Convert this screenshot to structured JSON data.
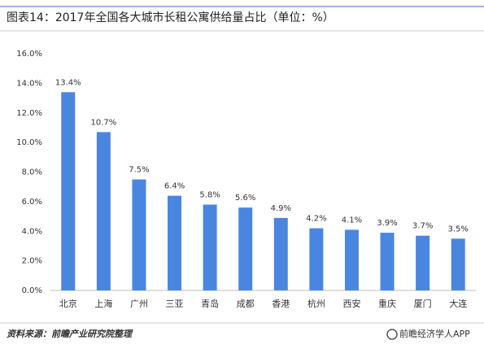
{
  "chart_data": {
    "type": "bar",
    "title": "图表14：2017年全国各大城市长租公寓供给量占比（单位：%）",
    "categories": [
      "北京",
      "上海",
      "广州",
      "三亚",
      "青岛",
      "成都",
      "香港",
      "杭州",
      "西安",
      "重庆",
      "厦门",
      "大连"
    ],
    "values": [
      13.4,
      10.7,
      7.5,
      6.4,
      5.8,
      5.6,
      4.9,
      4.2,
      4.1,
      3.9,
      3.7,
      3.5
    ],
    "value_labels": [
      "13.4%",
      "10.7%",
      "7.5%",
      "6.4%",
      "5.8%",
      "5.6%",
      "4.9%",
      "4.2%",
      "4.1%",
      "3.9%",
      "3.7%",
      "3.5%"
    ],
    "color": "#4a86e0",
    "ylim": [
      0,
      16
    ],
    "yticks": [
      {
        "value": 0,
        "label": "0.0%"
      },
      {
        "value": 2,
        "label": "2.0%"
      },
      {
        "value": 4,
        "label": "4.0%"
      },
      {
        "value": 6,
        "label": "6.0%"
      },
      {
        "value": 8,
        "label": "8.0%"
      },
      {
        "value": 10,
        "label": "10.0%"
      },
      {
        "value": 12,
        "label": "12.0%"
      },
      {
        "value": 14,
        "label": "14.0%"
      },
      {
        "value": 16,
        "label": "16.0%"
      }
    ],
    "grid": false,
    "source": "资料来源：前瞻产业研究院整理",
    "brand": "前瞻经济学人APP"
  }
}
